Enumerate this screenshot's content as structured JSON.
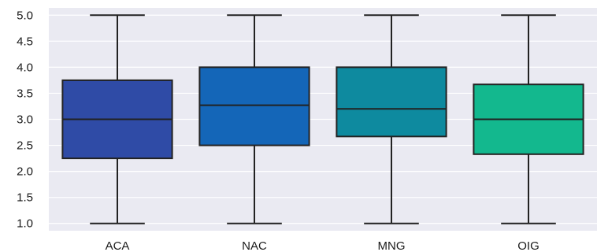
{
  "chart_data": {
    "type": "boxplot",
    "title": "",
    "xlabel": "",
    "ylabel": "",
    "ylim": [
      0.86,
      5.14
    ],
    "yticks": [
      "1.0",
      "1.5",
      "2.0",
      "2.5",
      "3.0",
      "3.5",
      "4.0",
      "4.5",
      "5.0"
    ],
    "grid": true,
    "background": "#eaeaf2",
    "grid_color": "#ffffff",
    "line_color": "#222222",
    "categories": [
      "ACA",
      "NAC",
      "MNG",
      "OIG"
    ],
    "boxes": [
      {
        "category": "ACA",
        "whisker_low": 1.0,
        "q1": 2.25,
        "median": 3.0,
        "q3": 3.75,
        "whisker_high": 5.0,
        "color": "#2f4ba6"
      },
      {
        "category": "NAC",
        "whisker_low": 1.0,
        "q1": 2.5,
        "median": 3.27,
        "q3": 4.0,
        "whisker_high": 5.0,
        "color": "#1466b8"
      },
      {
        "category": "MNG",
        "whisker_low": 1.0,
        "q1": 2.67,
        "median": 3.2,
        "q3": 4.0,
        "whisker_high": 5.0,
        "color": "#0e8a9f"
      },
      {
        "category": "OIG",
        "whisker_low": 1.0,
        "q1": 2.33,
        "median": 3.0,
        "q3": 3.67,
        "whisker_high": 5.0,
        "color": "#13b88e"
      }
    ]
  }
}
